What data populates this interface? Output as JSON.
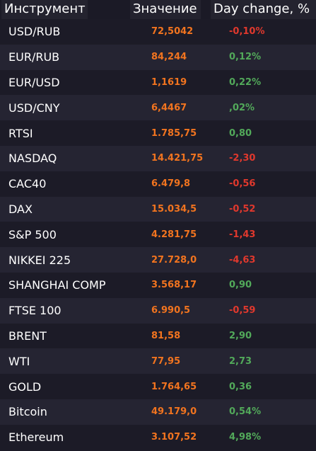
{
  "header": {
    "instrument": "Инструмент",
    "value": "Значение",
    "change": "Day change, %"
  },
  "colors": {
    "value": "#f2741f",
    "negative": "#e0382d",
    "positive": "#52a95a",
    "bg_dark": "#1c1b27",
    "bg_light": "#252432"
  },
  "rows": [
    {
      "name": "USD/RUB",
      "value": "72,5042",
      "change": "-0,10%",
      "trend": "neg"
    },
    {
      "name": "EUR/RUB",
      "value": "84,244",
      "change": "0,12%",
      "trend": "pos"
    },
    {
      "name": "EUR/USD",
      "value": "1,1619",
      "change": "0,22%",
      "trend": "pos"
    },
    {
      "name": "USD/CNY",
      "value": "6,4467",
      "change": ",02%",
      "trend": "pos"
    },
    {
      "name": "RTSI",
      "value": "1.785,75",
      "change": "0,80",
      "trend": "pos"
    },
    {
      "name": "NASDAQ",
      "value": "14.421,75",
      "change": "-2,30",
      "trend": "neg"
    },
    {
      "name": "CAC40",
      "value": "6.479,8",
      "change": "-0,56",
      "trend": "neg"
    },
    {
      "name": "DAX",
      "value": "15.034,5",
      "change": "-0,52",
      "trend": "neg"
    },
    {
      "name": "S&P 500",
      "value": "4.281,75",
      "change": "-1,43",
      "trend": "neg"
    },
    {
      "name": "NIKKEI 225",
      "value": "27.728,0",
      "change": "-4,63",
      "trend": "neg"
    },
    {
      "name": "SHANGHAI COMP",
      "value": "3.568,17",
      "change": "0,90",
      "trend": "pos"
    },
    {
      "name": "FTSE 100",
      "value": "6.990,5",
      "change": "-0,59",
      "trend": "neg"
    },
    {
      "name": "BRENT",
      "value": "81,58",
      "change": "2,90",
      "trend": "pos"
    },
    {
      "name": "WTI",
      "value": "77,95",
      "change": "2,73",
      "trend": "pos"
    },
    {
      "name": "GOLD",
      "value": "1.764,65",
      "change": "0,36",
      "trend": "pos"
    },
    {
      "name": "Bitcoin",
      "value": "49.179,0",
      "change": "0,54%",
      "trend": "pos"
    },
    {
      "name": "Ethereum",
      "value": "3.107,52",
      "change": "4,98%",
      "trend": "pos"
    }
  ]
}
